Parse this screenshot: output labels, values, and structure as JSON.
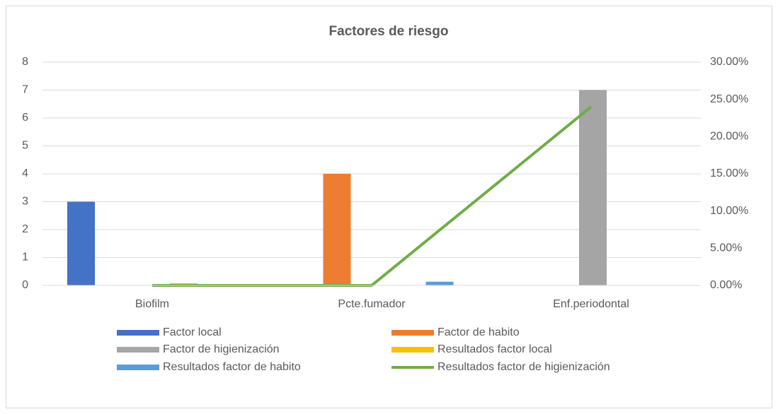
{
  "chart_data": {
    "type": "bar",
    "title": "Factores de riesgo",
    "categories": [
      "Biofilm",
      "Pcte.fumador",
      "Enf.periodontal"
    ],
    "ylim": [
      0,
      8
    ],
    "yticks": [
      0,
      1,
      2,
      3,
      4,
      5,
      6,
      7,
      8
    ],
    "y2lim": [
      0,
      30
    ],
    "y2ticks": [
      {
        "value": 0,
        "label": "0.00%"
      },
      {
        "value": 5,
        "label": "5.00%"
      },
      {
        "value": 10,
        "label": "10.00%"
      },
      {
        "value": 15,
        "label": "15.00%"
      },
      {
        "value": 20,
        "label": "20.00%"
      },
      {
        "value": 25,
        "label": "25.00%"
      },
      {
        "value": 30,
        "label": "30.00%"
      }
    ],
    "grid": true,
    "legend": "bottom",
    "series": [
      {
        "name": "Factor local",
        "color": "#4472c4",
        "values": [
          3,
          0,
          0
        ]
      },
      {
        "name": "Factor de habito",
        "color": "#ed7d31",
        "values": [
          0,
          4,
          0
        ]
      },
      {
        "name": "Factor de higienización",
        "color": "#a5a5a5",
        "values": [
          0,
          0,
          7
        ]
      },
      {
        "name": "Resultados factor local",
        "color": "#ffc000",
        "axis": "y2",
        "values": [
          0.3,
          0,
          0
        ]
      },
      {
        "name": "Resultados factor de habito",
        "color": "#5b9bd5",
        "axis": "y2",
        "values": [
          0,
          0.5,
          0
        ]
      },
      {
        "name": "Resultados factor de higienización",
        "color": "#70ad47",
        "axis": "y2",
        "type": "line",
        "values": [
          0,
          0,
          24
        ]
      }
    ]
  }
}
